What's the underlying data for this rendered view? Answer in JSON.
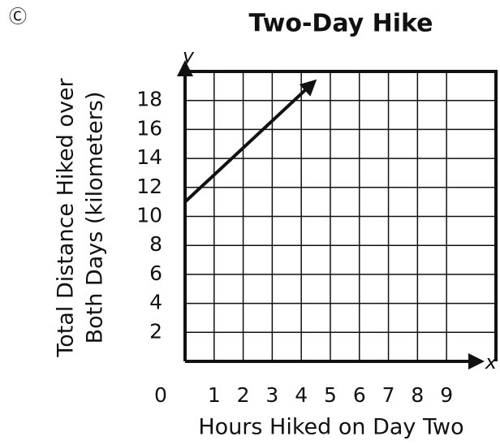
{
  "chart_data": {
    "type": "line",
    "title": "Two-Day Hike",
    "option_label": "Ⓒ",
    "x_label": "Hours Hiked on Day Two",
    "y_label": [
      "Total Distance Hiked over",
      "Both Days (kilometers)"
    ],
    "x_axis_letter": "x",
    "y_axis_letter": "y",
    "origin_label": "0",
    "x": [
      0,
      4.45
    ],
    "series": [
      {
        "color": "#111111",
        "values": [
          11,
          19.3
        ]
      }
    ],
    "xlim": [
      0,
      10.7
    ],
    "xticks": [
      1,
      2,
      3,
      4,
      5,
      6,
      7,
      8,
      9
    ],
    "ylim": [
      0,
      20
    ],
    "yticks": [
      2,
      4,
      6,
      8,
      10,
      12,
      14,
      16,
      18
    ],
    "grid": true
  }
}
